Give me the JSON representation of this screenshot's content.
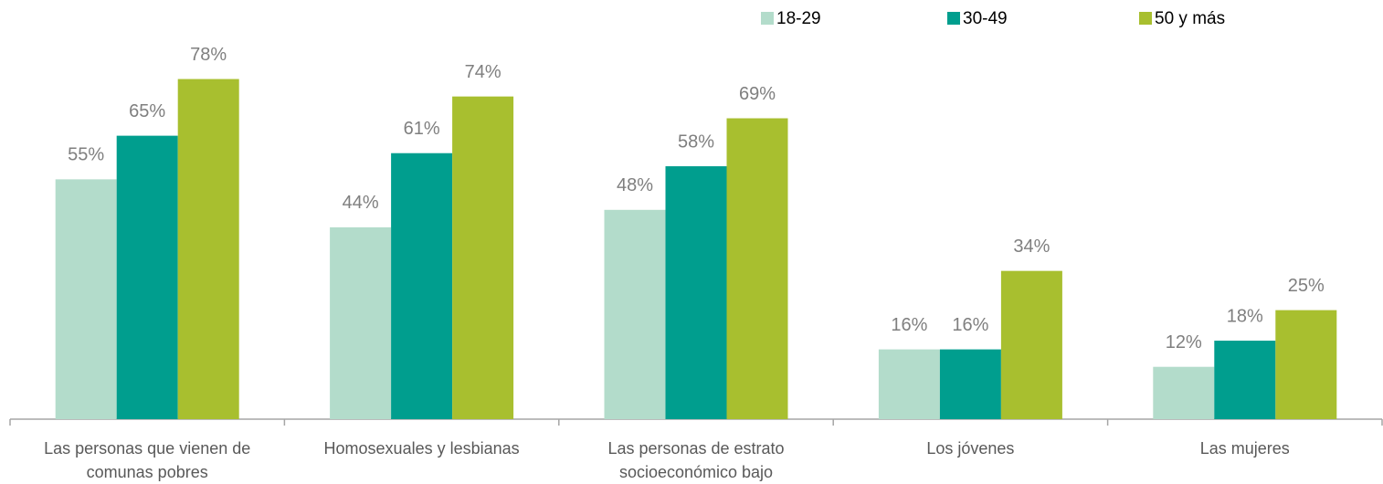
{
  "chart_data": {
    "type": "bar",
    "categories": [
      "Las personas que vienen de comunas pobres",
      "Homosexuales y lesbianas",
      "Las personas de estrato socioeconómico bajo",
      "Los jóvenes",
      "Las mujeres"
    ],
    "series": [
      {
        "name": "18-29",
        "color": "#b3dccb",
        "values": [
          55,
          44,
          48,
          16,
          12
        ],
        "value_labels": [
          "55%",
          "44%",
          "48%",
          "16%",
          "12%"
        ]
      },
      {
        "name": "30-49",
        "color": "#009e8e",
        "values": [
          65,
          61,
          58,
          16,
          18
        ],
        "value_labels": [
          "65%",
          "61%",
          "58%",
          "16%",
          "18%"
        ]
      },
      {
        "name": "50 y más",
        "color": "#a8bf2f",
        "values": [
          78,
          74,
          69,
          34,
          25
        ],
        "value_labels": [
          "78%",
          "74%",
          "69%",
          "34%",
          "25%"
        ]
      }
    ],
    "ylim": [
      0,
      80
    ],
    "legend": "top-right"
  }
}
